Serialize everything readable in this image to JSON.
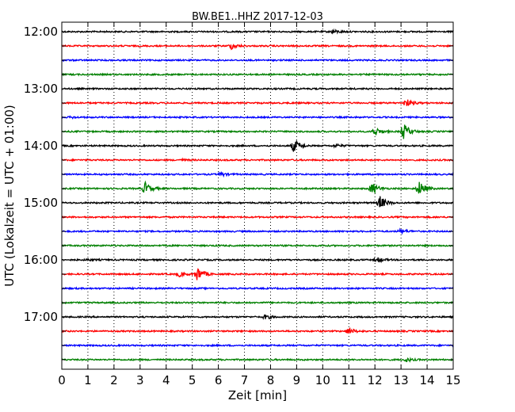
{
  "chart_data": {
    "type": "line",
    "title": "BW.BE1..HHZ 2017-12-03",
    "xlabel": "Zeit  [min]",
    "ylabel": "UTC (Lokalzeit = UTC + 01:00)",
    "xlim": [
      0,
      15
    ],
    "x_ticks": [
      "0",
      "1",
      "2",
      "3",
      "4",
      "5",
      "6",
      "7",
      "8",
      "9",
      "10",
      "11",
      "12",
      "13",
      "14",
      "15"
    ],
    "y_ticks": [
      "12:00",
      "13:00",
      "14:00",
      "15:00",
      "16:00",
      "17:00"
    ],
    "grid": true,
    "trace_colors": [
      "#000000",
      "#ff0000",
      "#0000ff",
      "#008000"
    ],
    "traces": [
      {
        "start": "12:00",
        "events": [
          {
            "t": 10.4,
            "amp": 0.25
          }
        ]
      },
      {
        "start": "12:15",
        "events": [
          {
            "t": 6.5,
            "amp": 0.4
          }
        ]
      },
      {
        "start": "12:30",
        "events": []
      },
      {
        "start": "12:45",
        "events": []
      },
      {
        "start": "13:00",
        "events": []
      },
      {
        "start": "13:15",
        "events": [
          {
            "t": 13.2,
            "amp": 0.55
          }
        ]
      },
      {
        "start": "13:30",
        "events": [
          {
            "t": 0.4,
            "amp": 0.1
          }
        ]
      },
      {
        "start": "13:45",
        "events": [
          {
            "t": 12.0,
            "amp": 0.6
          },
          {
            "t": 13.1,
            "amp": 1.1
          }
        ]
      },
      {
        "start": "14:00",
        "events": [
          {
            "t": 8.9,
            "amp": 0.9
          },
          {
            "t": 10.5,
            "amp": 0.2
          }
        ]
      },
      {
        "start": "14:15",
        "events": [
          {
            "t": 4.6,
            "amp": 0.1
          }
        ]
      },
      {
        "start": "14:30",
        "events": [
          {
            "t": 6.1,
            "amp": 0.25
          }
        ]
      },
      {
        "start": "14:45",
        "events": [
          {
            "t": 3.2,
            "amp": 0.85
          },
          {
            "t": 11.9,
            "amp": 0.8
          },
          {
            "t": 13.7,
            "amp": 1.0
          }
        ]
      },
      {
        "start": "15:00",
        "events": [
          {
            "t": 12.2,
            "amp": 0.9
          }
        ]
      },
      {
        "start": "15:15",
        "events": []
      },
      {
        "start": "15:30",
        "events": [
          {
            "t": 13.0,
            "amp": 0.3
          }
        ]
      },
      {
        "start": "15:45",
        "events": []
      },
      {
        "start": "16:00",
        "events": [
          {
            "t": 12.1,
            "amp": 0.3
          },
          {
            "t": 1.0,
            "amp": 0.1
          }
        ]
      },
      {
        "start": "16:15",
        "events": [
          {
            "t": 5.2,
            "amp": 1.0
          },
          {
            "t": 4.5,
            "amp": 0.3
          }
        ]
      },
      {
        "start": "16:30",
        "events": []
      },
      {
        "start": "16:45",
        "events": []
      },
      {
        "start": "17:00",
        "events": [
          {
            "t": 7.8,
            "amp": 0.3
          }
        ]
      },
      {
        "start": "17:15",
        "events": [
          {
            "t": 11.0,
            "amp": 0.45
          }
        ]
      },
      {
        "start": "17:30",
        "events": []
      },
      {
        "start": "17:45",
        "events": [
          {
            "t": 13.2,
            "amp": 0.25
          }
        ]
      }
    ]
  }
}
